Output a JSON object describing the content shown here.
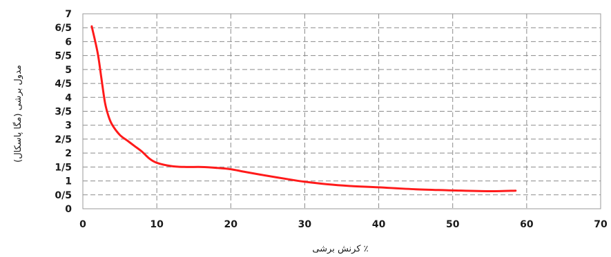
{
  "chart_data": {
    "type": "line",
    "title": "",
    "xlabel": "کرنش برشی ٪",
    "ylabel": "مدول برشی (مگا پاسکال)",
    "xlim": [
      0,
      70
    ],
    "ylim": [
      0,
      7
    ],
    "x_ticks": [
      0,
      10,
      20,
      30,
      40,
      50,
      60,
      70
    ],
    "x_tick_labels": [
      "0",
      "10",
      "20",
      "30",
      "40",
      "50",
      "60",
      "70"
    ],
    "y_ticks": [
      0,
      0.5,
      1,
      1.5,
      2,
      2.5,
      3,
      3.5,
      4,
      4.5,
      5,
      5.5,
      6,
      6.5,
      7
    ],
    "y_tick_labels": [
      "0",
      "0/5",
      "1",
      "1/5",
      "2",
      "2/5",
      "3",
      "3/5",
      "4",
      "4/5",
      "5",
      "5/5",
      "6",
      "6/5",
      "7"
    ],
    "grid": true,
    "series": [
      {
        "color": "#ff1a1a",
        "x": [
          1.2,
          2,
          2.5,
          3,
          3.5,
          4,
          5,
          6,
          7,
          8,
          9,
          10,
          12,
          14,
          16,
          18,
          20,
          22,
          25,
          28,
          30,
          33,
          36,
          40,
          45,
          50,
          55,
          58.5
        ],
        "y": [
          6.55,
          5.6,
          4.7,
          3.8,
          3.3,
          3.0,
          2.65,
          2.45,
          2.25,
          2.05,
          1.8,
          1.65,
          1.53,
          1.5,
          1.5,
          1.47,
          1.42,
          1.32,
          1.18,
          1.05,
          0.97,
          0.88,
          0.82,
          0.77,
          0.7,
          0.66,
          0.63,
          0.65
        ]
      }
    ]
  }
}
